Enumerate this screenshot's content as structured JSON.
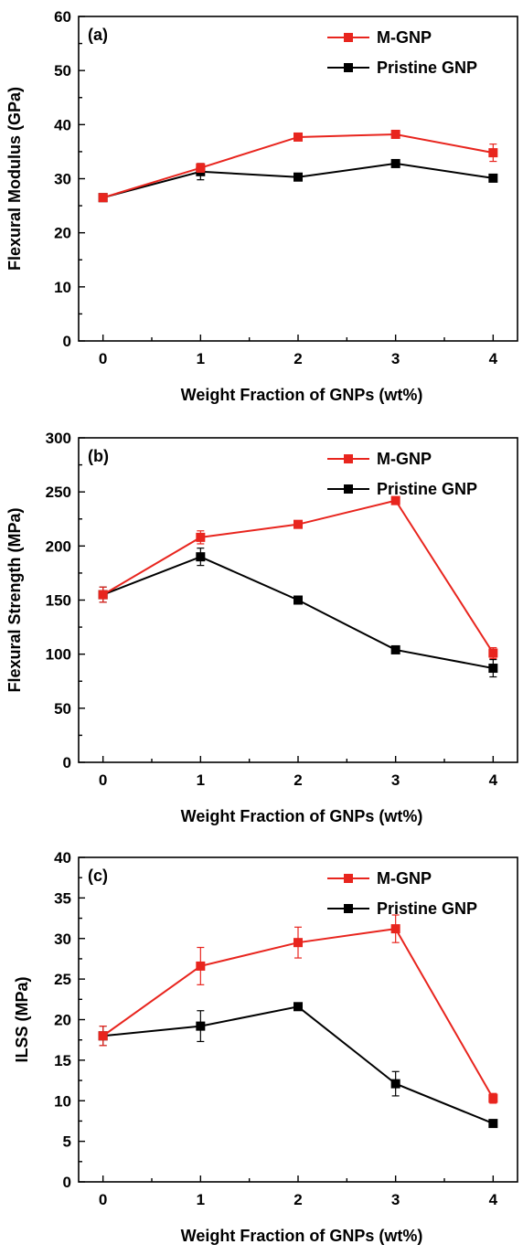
{
  "chart_data": [
    {
      "type": "line",
      "panel_label": "(a)",
      "xlabel": "Weight Fraction of GNPs (wt%)",
      "ylabel": "Flexural Modulus (GPa)",
      "x": [
        0,
        1,
        2,
        3,
        4
      ],
      "xlim": [
        -0.25,
        4.25
      ],
      "ylim": [
        0,
        60
      ],
      "xticks": [
        0,
        1,
        2,
        3,
        4
      ],
      "yticks": [
        0,
        10,
        20,
        30,
        40,
        50,
        60
      ],
      "legend_position": "top-right",
      "grid": false,
      "series": [
        {
          "name": "M-GNP",
          "color": "#e8251e",
          "values": [
            26.5,
            32.0,
            37.7,
            38.2,
            34.8
          ],
          "errors": [
            0.6,
            0.8,
            0.6,
            0.6,
            1.6
          ]
        },
        {
          "name": "Pristine GNP",
          "color": "#000000",
          "values": [
            26.5,
            31.3,
            30.3,
            32.8,
            30.1
          ],
          "errors": [
            0.6,
            1.5,
            0.5,
            0.6,
            0.6
          ]
        }
      ]
    },
    {
      "type": "line",
      "panel_label": "(b)",
      "xlabel": "Weight Fraction of GNPs (wt%)",
      "ylabel": "Flexural Strength (MPa)",
      "x": [
        0,
        1,
        2,
        3,
        4
      ],
      "xlim": [
        -0.25,
        4.25
      ],
      "ylim": [
        0,
        300
      ],
      "xticks": [
        0,
        1,
        2,
        3,
        4
      ],
      "yticks": [
        0,
        50,
        100,
        150,
        200,
        250,
        300
      ],
      "legend_position": "top-right",
      "grid": false,
      "series": [
        {
          "name": "M-GNP",
          "color": "#e8251e",
          "values": [
            155,
            208,
            220,
            242,
            101
          ],
          "errors": [
            7,
            6,
            3,
            2,
            5
          ]
        },
        {
          "name": "Pristine GNP",
          "color": "#000000",
          "values": [
            155,
            190,
            150,
            104,
            87
          ],
          "errors": [
            7,
            8,
            3,
            3,
            8
          ]
        }
      ]
    },
    {
      "type": "line",
      "panel_label": "(c)",
      "xlabel": "Weight Fraction of GNPs (wt%)",
      "ylabel": "ILSS (MPa)",
      "x": [
        0,
        1,
        2,
        3,
        4
      ],
      "xlim": [
        -0.25,
        4.25
      ],
      "ylim": [
        0,
        40
      ],
      "xticks": [
        0,
        1,
        2,
        3,
        4
      ],
      "yticks": [
        0,
        5,
        10,
        15,
        20,
        25,
        30,
        35,
        40
      ],
      "legend_position": "top-right",
      "grid": false,
      "series": [
        {
          "name": "M-GNP",
          "color": "#e8251e",
          "values": [
            18.0,
            26.6,
            29.5,
            31.2,
            10.3
          ],
          "errors": [
            1.2,
            2.3,
            1.9,
            1.7,
            0.6
          ]
        },
        {
          "name": "Pristine GNP",
          "color": "#000000",
          "values": [
            18.0,
            19.2,
            21.6,
            12.1,
            7.2
          ],
          "errors": [
            1.2,
            1.9,
            0.3,
            1.5,
            0.3
          ]
        }
      ]
    }
  ]
}
